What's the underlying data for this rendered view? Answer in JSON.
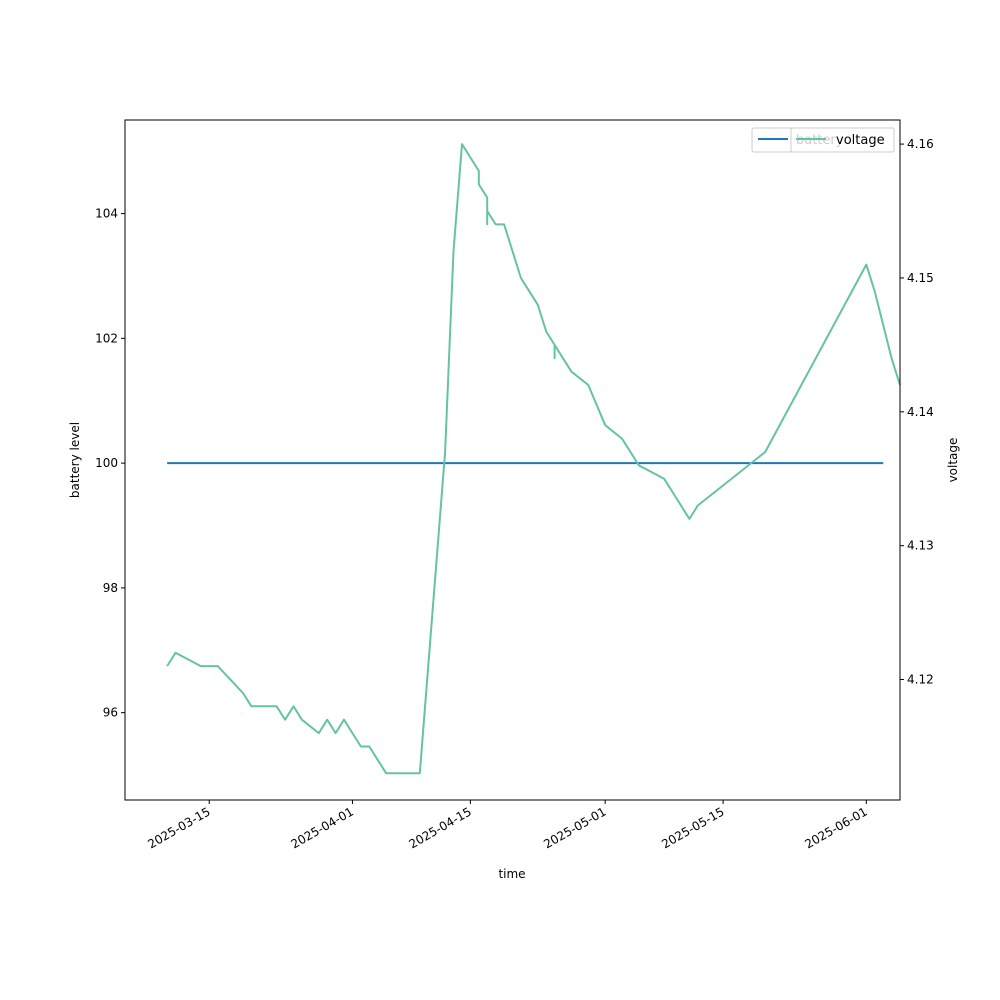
{
  "chart_data": {
    "type": "line",
    "xlabel": "time",
    "ylabel_left": "battery level",
    "ylabel_right": "voltage",
    "x_range": [
      "2025-03-05",
      "2025-06-05"
    ],
    "x_ticks": [
      "2025-03-15",
      "2025-04-01",
      "2025-04-15",
      "2025-05-01",
      "2025-05-15",
      "2025-06-01"
    ],
    "ylim_left": [
      94.6,
      105.5
    ],
    "yticks_left": [
      96,
      98,
      100,
      102,
      104
    ],
    "ylim_right": [
      4.111,
      4.1618
    ],
    "yticks_right": [
      4.12,
      4.13,
      4.14,
      4.15,
      4.16
    ],
    "legend_placement": "top-right",
    "grid": false,
    "series": [
      {
        "name": "battery",
        "axis": "left",
        "color": "#1f77b4",
        "points": [
          [
            "2025-03-10",
            100
          ],
          [
            "2025-06-03",
            100
          ]
        ]
      },
      {
        "name": "voltage",
        "axis": "right",
        "color": "#66c2a5",
        "points": [
          [
            "2025-03-10",
            4.121
          ],
          [
            "2025-03-11",
            4.122
          ],
          [
            "2025-03-14",
            4.121
          ],
          [
            "2025-03-16",
            4.121
          ],
          [
            "2025-03-19",
            4.119
          ],
          [
            "2025-03-20",
            4.118
          ],
          [
            "2025-03-23",
            4.118
          ],
          [
            "2025-03-24",
            4.117
          ],
          [
            "2025-03-25",
            4.118
          ],
          [
            "2025-03-26",
            4.117
          ],
          [
            "2025-03-28",
            4.116
          ],
          [
            "2025-03-29",
            4.117
          ],
          [
            "2025-03-30",
            4.116
          ],
          [
            "2025-03-31",
            4.117
          ],
          [
            "2025-04-01",
            4.116
          ],
          [
            "2025-04-02",
            4.115
          ],
          [
            "2025-04-03",
            4.115
          ],
          [
            "2025-04-05",
            4.113
          ],
          [
            "2025-04-07",
            4.113
          ],
          [
            "2025-04-09",
            4.113
          ],
          [
            "2025-04-12",
            4.137
          ],
          [
            "2025-04-13",
            4.152
          ],
          [
            "2025-04-14",
            4.16
          ],
          [
            "2025-04-15",
            4.159
          ],
          [
            "2025-04-16",
            4.158
          ],
          [
            "2025-04-16",
            4.157
          ],
          [
            "2025-04-17",
            4.156
          ],
          [
            "2025-04-17",
            4.154
          ],
          [
            "2025-04-17",
            4.155
          ],
          [
            "2025-04-18",
            4.154
          ],
          [
            "2025-04-19",
            4.154
          ],
          [
            "2025-04-20",
            4.152
          ],
          [
            "2025-04-21",
            4.15
          ],
          [
            "2025-04-22",
            4.149
          ],
          [
            "2025-04-23",
            4.148
          ],
          [
            "2025-04-24",
            4.146
          ],
          [
            "2025-04-25",
            4.145
          ],
          [
            "2025-04-25",
            4.144
          ],
          [
            "2025-04-25",
            4.145
          ],
          [
            "2025-04-26",
            4.144
          ],
          [
            "2025-04-27",
            4.143
          ],
          [
            "2025-04-29",
            4.142
          ],
          [
            "2025-05-01",
            4.139
          ],
          [
            "2025-05-03",
            4.138
          ],
          [
            "2025-05-05",
            4.136
          ],
          [
            "2025-05-08",
            4.135
          ],
          [
            "2025-05-10",
            4.133
          ],
          [
            "2025-05-11",
            4.132
          ],
          [
            "2025-05-12",
            4.133
          ],
          [
            "2025-05-20",
            4.137
          ],
          [
            "2025-06-01",
            4.151
          ],
          [
            "2025-06-02",
            4.149
          ],
          [
            "2025-06-04",
            4.144
          ],
          [
            "2025-06-05",
            4.142
          ]
        ]
      }
    ]
  }
}
